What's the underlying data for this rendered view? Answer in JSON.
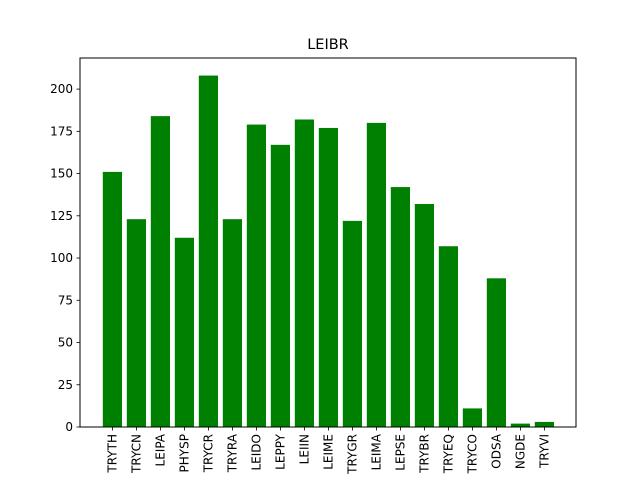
{
  "chart_data": {
    "type": "bar",
    "title": "LEIBR",
    "xlabel": "",
    "ylabel": "",
    "categories": [
      "TRYTH",
      "TRYCN",
      "LEIPA",
      "PHYSP",
      "TRYCR",
      "TRYRA",
      "LEIDO",
      "LEPPY",
      "LEIIN",
      "LEIME",
      "TRYGR",
      "LEIMA",
      "LEPSE",
      "TRYBR",
      "TRYEQ",
      "TRYCO",
      "ODSA",
      "NGDE",
      "TRYVI"
    ],
    "values": [
      151,
      123,
      184,
      112,
      208,
      123,
      179,
      167,
      182,
      177,
      122,
      180,
      142,
      132,
      107,
      11,
      88,
      2,
      3
    ],
    "ylim": [
      0,
      218.4
    ],
    "yticks": [
      0,
      25,
      50,
      75,
      100,
      125,
      150,
      175,
      200
    ],
    "bar_color": "#008000",
    "grid": false,
    "legend": "none"
  }
}
